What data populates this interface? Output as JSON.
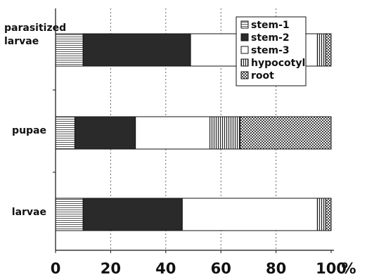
{
  "chart_data": {
    "type": "bar",
    "orientation": "horizontal",
    "stacked": true,
    "categories": [
      "parasitized larvae",
      "pupae",
      "larvae"
    ],
    "category_lines": [
      [
        "parasitized",
        "larvae"
      ],
      [
        "pupae"
      ],
      [
        "larvae"
      ]
    ],
    "series": [
      {
        "name": "stem-1",
        "pattern": "hlines",
        "values": [
          10,
          7,
          10
        ]
      },
      {
        "name": "stem-2",
        "pattern": "dark",
        "values": [
          39,
          22,
          36
        ]
      },
      {
        "name": "stem-3",
        "pattern": "white",
        "values": [
          46,
          27,
          49
        ]
      },
      {
        "name": "hypocotyl",
        "pattern": "vlines",
        "values": [
          3,
          11,
          3
        ]
      },
      {
        "name": "root",
        "pattern": "checker",
        "values": [
          2,
          33,
          2
        ]
      }
    ],
    "x_ticks": [
      "0",
      "20",
      "40",
      "60",
      "80",
      "100"
    ],
    "x_tick_values": [
      0,
      20,
      40,
      60,
      80,
      100
    ],
    "x_unit": "%",
    "xlim": [
      0,
      100
    ],
    "grid": "vertical dotted",
    "legend_position": "top-right"
  }
}
